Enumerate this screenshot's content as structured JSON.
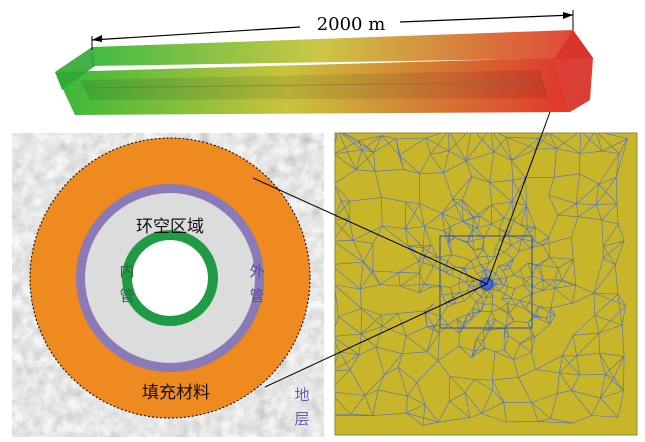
{
  "length_label": "2000 m",
  "annulus_label": "环空区域",
  "inner_pipe_label": [
    "内",
    "管"
  ],
  "outer_pipe_label": [
    "外",
    "管"
  ],
  "fill_material_label": "填充材料",
  "formation_label": [
    "地",
    "层"
  ],
  "colors": {
    "beam_start": "#3fbf3a",
    "beam_mid": "#cbc63a",
    "beam_end": "#e23a2e",
    "rock_texture": "#a8a8a8",
    "fill_material": "#ee8a1f",
    "outer_pipe": "#8a7ab8",
    "annulus": "#dcdcdc",
    "inner_pipe": "#1f9a45",
    "core": "#ffffff",
    "mesh_background": "#c8b52a",
    "mesh_lines": "#4a6fd0",
    "formation_text": "#6a5ab0"
  }
}
